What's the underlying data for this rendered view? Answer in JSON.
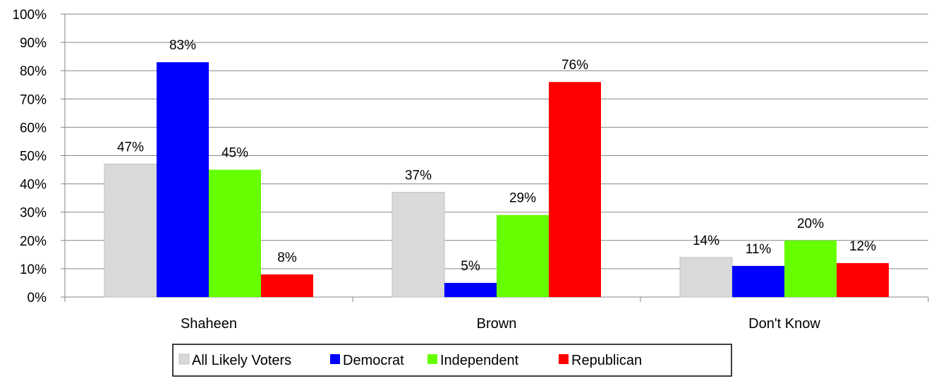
{
  "chart_data": {
    "type": "bar",
    "title": "",
    "xlabel": "",
    "ylabel": "",
    "ylim": [
      0,
      100
    ],
    "y_ticks": [
      "0%",
      "10%",
      "20%",
      "30%",
      "40%",
      "50%",
      "60%",
      "70%",
      "80%",
      "90%",
      "100%"
    ],
    "y_tick_values": [
      0,
      10,
      20,
      30,
      40,
      50,
      60,
      70,
      80,
      90,
      100
    ],
    "categories": [
      "Shaheen",
      "Brown",
      "Don't Know"
    ],
    "series": [
      {
        "name": "All Likely Voters",
        "color": "#d9d9d9",
        "values": [
          47,
          37,
          14
        ],
        "labels": [
          "47%",
          "37%",
          "14%"
        ]
      },
      {
        "name": "Democrat",
        "color": "#0000ff",
        "values": [
          83,
          5,
          11
        ],
        "labels": [
          "83%",
          "5%",
          "11%"
        ]
      },
      {
        "name": "Independent",
        "color": "#66ff00",
        "values": [
          45,
          29,
          20
        ],
        "labels": [
          "45%",
          "29%",
          "20%"
        ]
      },
      {
        "name": "Republican",
        "color": "#ff0000",
        "values": [
          8,
          76,
          12
        ],
        "labels": [
          "8%",
          "76%",
          "12%"
        ]
      }
    ],
    "grid": true,
    "legend_position": "bottom"
  }
}
